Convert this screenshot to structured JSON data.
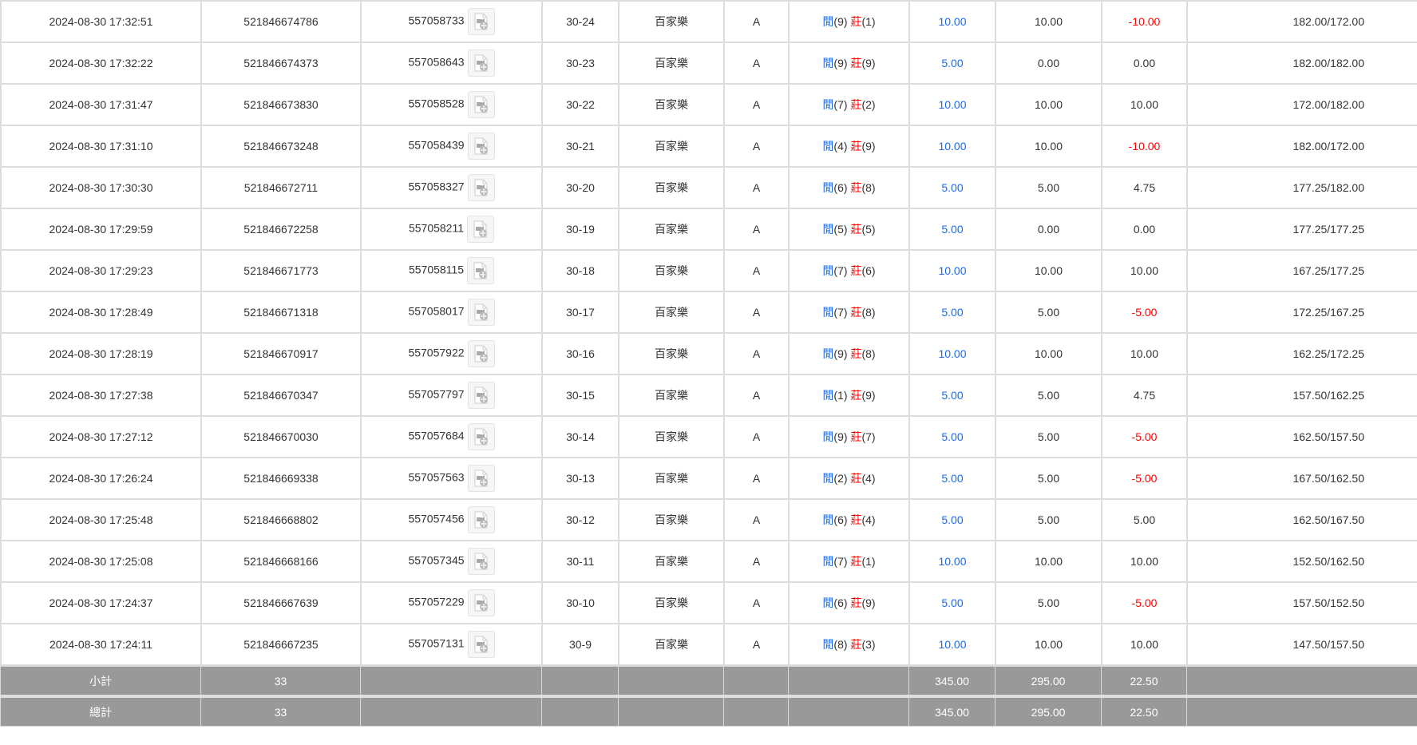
{
  "rows": [
    {
      "time": "2024-08-30 17:32:51",
      "bet_id": "521846674786",
      "round_id": "557058733",
      "shoe": "30-24",
      "game": "百家樂",
      "table": "A",
      "player_label": "閒",
      "player": "(9)",
      "banker_label": "莊",
      "banker": "(1)",
      "bet": "10.00",
      "valid": "10.00",
      "win": "-10.00",
      "win_neg": true,
      "balance": "182.00/172.00"
    },
    {
      "time": "2024-08-30 17:32:22",
      "bet_id": "521846674373",
      "round_id": "557058643",
      "shoe": "30-23",
      "game": "百家樂",
      "table": "A",
      "player_label": "閒",
      "player": "(9)",
      "banker_label": "莊",
      "banker": "(9)",
      "bet": "5.00",
      "valid": "0.00",
      "win": "0.00",
      "win_neg": false,
      "balance": "182.00/182.00"
    },
    {
      "time": "2024-08-30 17:31:47",
      "bet_id": "521846673830",
      "round_id": "557058528",
      "shoe": "30-22",
      "game": "百家樂",
      "table": "A",
      "player_label": "閒",
      "player": "(7)",
      "banker_label": "莊",
      "banker": "(2)",
      "bet": "10.00",
      "valid": "10.00",
      "win": "10.00",
      "win_neg": false,
      "balance": "172.00/182.00"
    },
    {
      "time": "2024-08-30 17:31:10",
      "bet_id": "521846673248",
      "round_id": "557058439",
      "shoe": "30-21",
      "game": "百家樂",
      "table": "A",
      "player_label": "閒",
      "player": "(4)",
      "banker_label": "莊",
      "banker": "(9)",
      "bet": "10.00",
      "valid": "10.00",
      "win": "-10.00",
      "win_neg": true,
      "balance": "182.00/172.00"
    },
    {
      "time": "2024-08-30 17:30:30",
      "bet_id": "521846672711",
      "round_id": "557058327",
      "shoe": "30-20",
      "game": "百家樂",
      "table": "A",
      "player_label": "閒",
      "player": "(6)",
      "banker_label": "莊",
      "banker": "(8)",
      "bet": "5.00",
      "valid": "5.00",
      "win": "4.75",
      "win_neg": false,
      "balance": "177.25/182.00"
    },
    {
      "time": "2024-08-30 17:29:59",
      "bet_id": "521846672258",
      "round_id": "557058211",
      "shoe": "30-19",
      "game": "百家樂",
      "table": "A",
      "player_label": "閒",
      "player": "(5)",
      "banker_label": "莊",
      "banker": "(5)",
      "bet": "5.00",
      "valid": "0.00",
      "win": "0.00",
      "win_neg": false,
      "balance": "177.25/177.25"
    },
    {
      "time": "2024-08-30 17:29:23",
      "bet_id": "521846671773",
      "round_id": "557058115",
      "shoe": "30-18",
      "game": "百家樂",
      "table": "A",
      "player_label": "閒",
      "player": "(7)",
      "banker_label": "莊",
      "banker": "(6)",
      "bet": "10.00",
      "valid": "10.00",
      "win": "10.00",
      "win_neg": false,
      "balance": "167.25/177.25"
    },
    {
      "time": "2024-08-30 17:28:49",
      "bet_id": "521846671318",
      "round_id": "557058017",
      "shoe": "30-17",
      "game": "百家樂",
      "table": "A",
      "player_label": "閒",
      "player": "(7)",
      "banker_label": "莊",
      "banker": "(8)",
      "bet": "5.00",
      "valid": "5.00",
      "win": "-5.00",
      "win_neg": true,
      "balance": "172.25/167.25"
    },
    {
      "time": "2024-08-30 17:28:19",
      "bet_id": "521846670917",
      "round_id": "557057922",
      "shoe": "30-16",
      "game": "百家樂",
      "table": "A",
      "player_label": "閒",
      "player": "(9)",
      "banker_label": "莊",
      "banker": "(8)",
      "bet": "10.00",
      "valid": "10.00",
      "win": "10.00",
      "win_neg": false,
      "balance": "162.25/172.25"
    },
    {
      "time": "2024-08-30 17:27:38",
      "bet_id": "521846670347",
      "round_id": "557057797",
      "shoe": "30-15",
      "game": "百家樂",
      "table": "A",
      "player_label": "閒",
      "player": "(1)",
      "banker_label": "莊",
      "banker": "(9)",
      "bet": "5.00",
      "valid": "5.00",
      "win": "4.75",
      "win_neg": false,
      "balance": "157.50/162.25"
    },
    {
      "time": "2024-08-30 17:27:12",
      "bet_id": "521846670030",
      "round_id": "557057684",
      "shoe": "30-14",
      "game": "百家樂",
      "table": "A",
      "player_label": "閒",
      "player": "(9)",
      "banker_label": "莊",
      "banker": "(7)",
      "bet": "5.00",
      "valid": "5.00",
      "win": "-5.00",
      "win_neg": true,
      "balance": "162.50/157.50"
    },
    {
      "time": "2024-08-30 17:26:24",
      "bet_id": "521846669338",
      "round_id": "557057563",
      "shoe": "30-13",
      "game": "百家樂",
      "table": "A",
      "player_label": "閒",
      "player": "(2)",
      "banker_label": "莊",
      "banker": "(4)",
      "bet": "5.00",
      "valid": "5.00",
      "win": "-5.00",
      "win_neg": true,
      "balance": "167.50/162.50"
    },
    {
      "time": "2024-08-30 17:25:48",
      "bet_id": "521846668802",
      "round_id": "557057456",
      "shoe": "30-12",
      "game": "百家樂",
      "table": "A",
      "player_label": "閒",
      "player": "(6)",
      "banker_label": "莊",
      "banker": "(4)",
      "bet": "5.00",
      "valid": "5.00",
      "win": "5.00",
      "win_neg": false,
      "balance": "162.50/167.50"
    },
    {
      "time": "2024-08-30 17:25:08",
      "bet_id": "521846668166",
      "round_id": "557057345",
      "shoe": "30-11",
      "game": "百家樂",
      "table": "A",
      "player_label": "閒",
      "player": "(7)",
      "banker_label": "莊",
      "banker": "(1)",
      "bet": "10.00",
      "valid": "10.00",
      "win": "10.00",
      "win_neg": false,
      "balance": "152.50/162.50"
    },
    {
      "time": "2024-08-30 17:24:37",
      "bet_id": "521846667639",
      "round_id": "557057229",
      "shoe": "30-10",
      "game": "百家樂",
      "table": "A",
      "player_label": "閒",
      "player": "(6)",
      "banker_label": "莊",
      "banker": "(9)",
      "bet": "5.00",
      "valid": "5.00",
      "win": "-5.00",
      "win_neg": true,
      "balance": "157.50/152.50"
    },
    {
      "time": "2024-08-30 17:24:11",
      "bet_id": "521846667235",
      "round_id": "557057131",
      "shoe": "30-9",
      "game": "百家樂",
      "table": "A",
      "player_label": "閒",
      "player": "(8)",
      "banker_label": "莊",
      "banker": "(3)",
      "bet": "10.00",
      "valid": "10.00",
      "win": "10.00",
      "win_neg": false,
      "balance": "147.50/157.50"
    }
  ],
  "subtotal": {
    "label": "小計",
    "count": "33",
    "bet": "345.00",
    "valid": "295.00",
    "win": "22.50"
  },
  "total": {
    "label": "總計",
    "count": "33",
    "bet": "345.00",
    "valid": "295.00",
    "win": "22.50"
  },
  "colors": {
    "player": "#1a6ae8",
    "banker": "#ff0000",
    "negative": "#ff0000",
    "summary_bg": "#999999"
  },
  "icons": {
    "replay": "video-file-icon"
  }
}
